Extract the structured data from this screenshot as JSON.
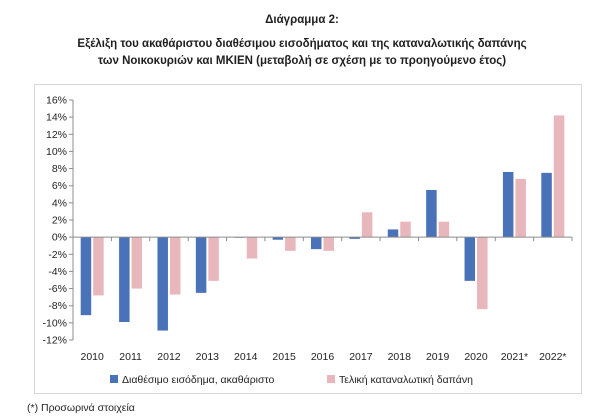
{
  "header": {
    "title": "Διάγραμμα 2:",
    "subtitle_line1": "Εξέλιξη του ακαθάριστου διαθέσιμου εισοδήματος και της καταναλωτικής δαπάνης",
    "subtitle_line2": "των Νοικοκυριών και ΜΚΙΕΝ (μεταβολή σε σχέση με το προηγούμενο έτος)"
  },
  "footnote": "(*) Προσωρινά στοιχεία",
  "chart_data": {
    "type": "bar",
    "categories": [
      "2010",
      "2011",
      "2012",
      "2013",
      "2014",
      "2015",
      "2016",
      "2017",
      "2018",
      "2019",
      "2020",
      "2021*",
      "2022*"
    ],
    "series": [
      {
        "name": "Διαθέσιμο εισόδημα, ακαθάριστο",
        "color": "#4a72b8",
        "values": [
          -9.1,
          -9.9,
          -10.9,
          -6.5,
          0.0,
          -0.3,
          -1.4,
          -0.2,
          0.9,
          5.5,
          -5.1,
          7.6,
          7.5
        ]
      },
      {
        "name": "Τελική καταναλωτική δαπάνη",
        "color": "#e8b7bc",
        "values": [
          -6.8,
          -6.0,
          -6.7,
          -5.1,
          -2.5,
          -1.6,
          -1.6,
          2.9,
          1.8,
          1.8,
          -8.4,
          6.8,
          14.2
        ]
      }
    ],
    "ylim": [
      -12,
      16
    ],
    "yticks": [
      16,
      14,
      12,
      10,
      8,
      6,
      4,
      2,
      0,
      -2,
      -4,
      -6,
      -8,
      -10,
      -12
    ],
    "ytick_format": "percent",
    "grid": false,
    "legend": "bottom"
  }
}
